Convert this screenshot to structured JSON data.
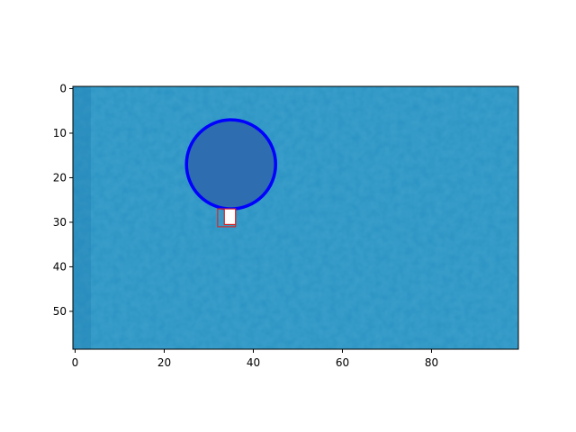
{
  "chart_data": {
    "type": "heatmap",
    "title": "",
    "xlabel": "",
    "ylabel": "",
    "xlim": [
      -0.5,
      99.5
    ],
    "ylim": [
      58.5,
      -0.5
    ],
    "x_ticks": [
      0,
      20,
      40,
      60,
      80
    ],
    "y_ticks": [
      0,
      10,
      20,
      30,
      40,
      50
    ],
    "image": {
      "description_of_content": "noisy blue texture",
      "width": 100,
      "height": 59,
      "base_color": "#2a93c3",
      "darker_tone": "#1f7fb2",
      "lighter_tone": "#3a9fd0"
    },
    "overlays": [
      {
        "type": "circle",
        "center": [
          35,
          17
        ],
        "radius": 10,
        "edge_color": "#0000ff",
        "face_color": "#2e6db0"
      },
      {
        "type": "rectangle",
        "x0": 32,
        "y0": 27,
        "x1": 36,
        "y1": 31,
        "edge_color": "#d62728",
        "face_color": "none"
      },
      {
        "type": "rectangle",
        "x0": 33.5,
        "y0": 27,
        "x1": 36,
        "y1": 30.5,
        "edge_color": "#d62728",
        "face_color": "#ffffff"
      }
    ],
    "grid": false,
    "legend": "none"
  }
}
